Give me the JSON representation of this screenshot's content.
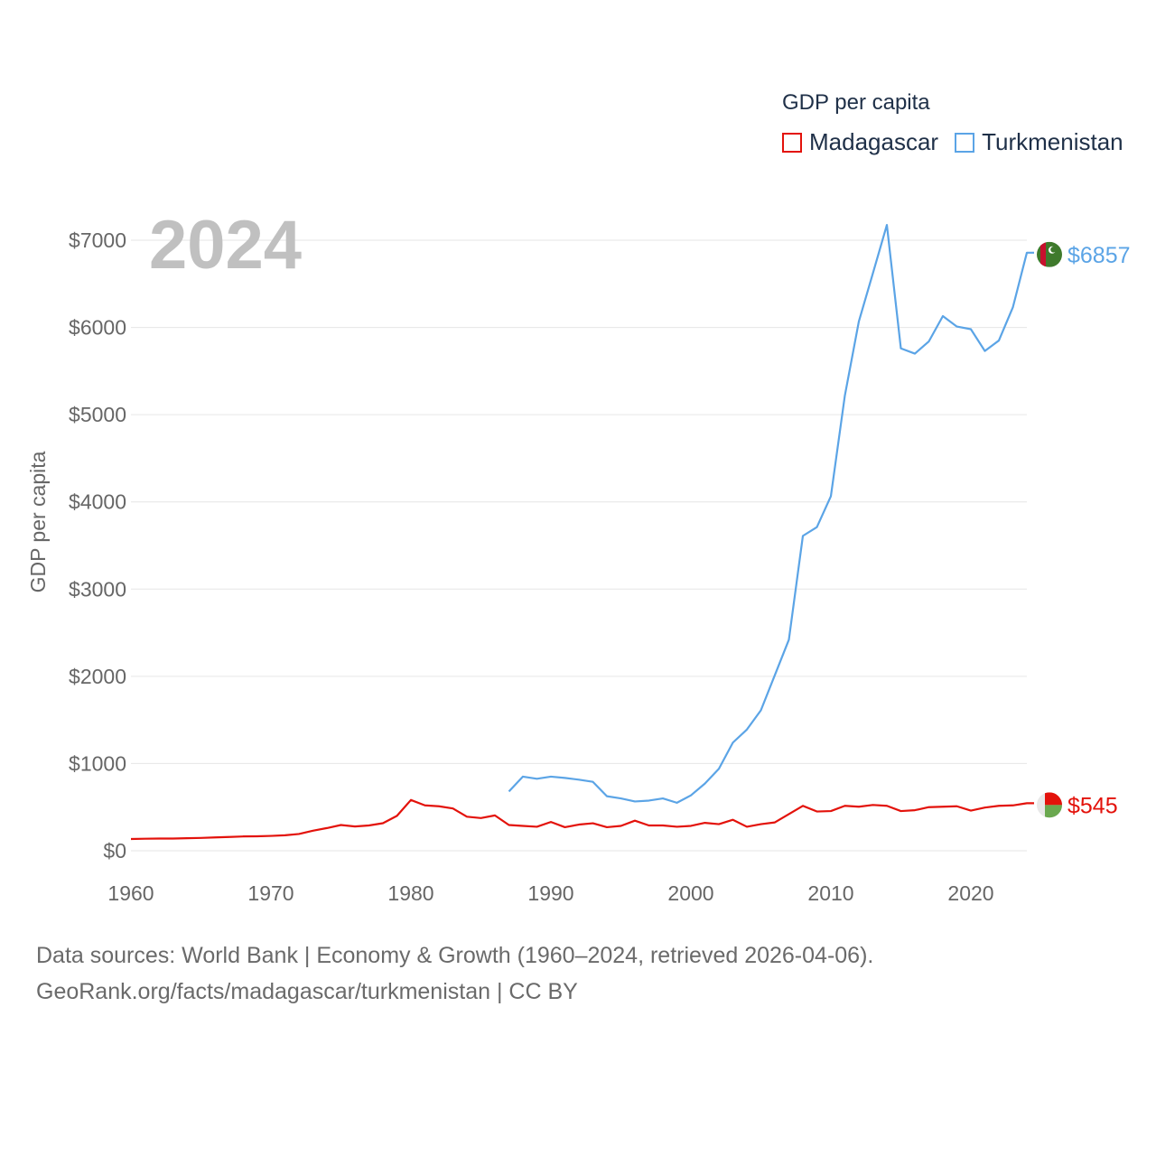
{
  "chart_data": {
    "type": "line",
    "title": "GDP per capita",
    "ylabel": "GDP per capita",
    "xlabel": "",
    "year_label": "2024",
    "xlim": [
      1960,
      2024
    ],
    "ylim": [
      0,
      7000
    ],
    "x_ticks": [
      1960,
      1970,
      1980,
      1990,
      2000,
      2010,
      2020
    ],
    "x_tick_labels": [
      "1960",
      "1970",
      "1980",
      "1990",
      "2000",
      "2010",
      "2020"
    ],
    "y_ticks": [
      0,
      1000,
      2000,
      3000,
      4000,
      5000,
      6000,
      7000
    ],
    "y_tick_labels": [
      "$0",
      "$1000",
      "$2000",
      "$3000",
      "$4000",
      "$5000",
      "$6000",
      "$7000"
    ],
    "grid": true,
    "legend_position": "top-right",
    "series": [
      {
        "name": "Madagascar",
        "color": "#e3120b",
        "end_label": "$545",
        "flag": "madagascar",
        "x": [
          1960,
          1961,
          1962,
          1963,
          1964,
          1965,
          1966,
          1967,
          1968,
          1969,
          1970,
          1971,
          1972,
          1973,
          1974,
          1975,
          1976,
          1977,
          1978,
          1979,
          1980,
          1981,
          1982,
          1983,
          1984,
          1985,
          1986,
          1987,
          1988,
          1989,
          1990,
          1991,
          1992,
          1993,
          1994,
          1995,
          1996,
          1997,
          1998,
          1999,
          2000,
          2001,
          2002,
          2003,
          2004,
          2005,
          2006,
          2007,
          2008,
          2009,
          2010,
          2011,
          2012,
          2013,
          2014,
          2015,
          2016,
          2017,
          2018,
          2019,
          2020,
          2021,
          2022,
          2023,
          2024
        ],
        "values": [
          135,
          138,
          140,
          140,
          144,
          147,
          153,
          158,
          164,
          166,
          170,
          177,
          192,
          230,
          260,
          295,
          278,
          290,
          316,
          400,
          582,
          520,
          510,
          485,
          390,
          375,
          405,
          295,
          285,
          275,
          330,
          270,
          300,
          315,
          270,
          285,
          345,
          290,
          290,
          275,
          285,
          320,
          305,
          355,
          275,
          305,
          325,
          420,
          515,
          450,
          455,
          515,
          505,
          525,
          515,
          455,
          465,
          500,
          505,
          510,
          460,
          495,
          515,
          520,
          545
        ]
      },
      {
        "name": "Turkmenistan",
        "color": "#5ba4e6",
        "end_label": "$6857",
        "flag": "turkmenistan",
        "x": [
          1987,
          1988,
          1989,
          1990,
          1991,
          1992,
          1993,
          1994,
          1995,
          1996,
          1997,
          1998,
          1999,
          2000,
          2001,
          2002,
          2003,
          2004,
          2005,
          2006,
          2007,
          2008,
          2009,
          2010,
          2011,
          2012,
          2013,
          2014,
          2015,
          2016,
          2017,
          2018,
          2019,
          2020,
          2021,
          2022,
          2023,
          2024
        ],
        "values": [
          680,
          850,
          825,
          850,
          835,
          815,
          790,
          625,
          600,
          565,
          575,
          600,
          550,
          635,
          770,
          940,
          1240,
          1390,
          1610,
          2015,
          2420,
          3610,
          3710,
          4065,
          5220,
          6070,
          6620,
          7175,
          5760,
          5700,
          5840,
          6130,
          6010,
          5980,
          5730,
          5850,
          6230,
          6857
        ]
      }
    ]
  },
  "legend": {
    "title": "GDP per capita",
    "items": [
      {
        "label": "Madagascar",
        "color": "#e3120b"
      },
      {
        "label": "Turkmenistan",
        "color": "#5ba4e6"
      }
    ]
  },
  "footer": {
    "line1": "Data sources: World Bank | Economy & Growth (1960–2024, retrieved 2026-04-06).",
    "line2": "GeoRank.org/facts/madagascar/turkmenistan | CC BY"
  }
}
